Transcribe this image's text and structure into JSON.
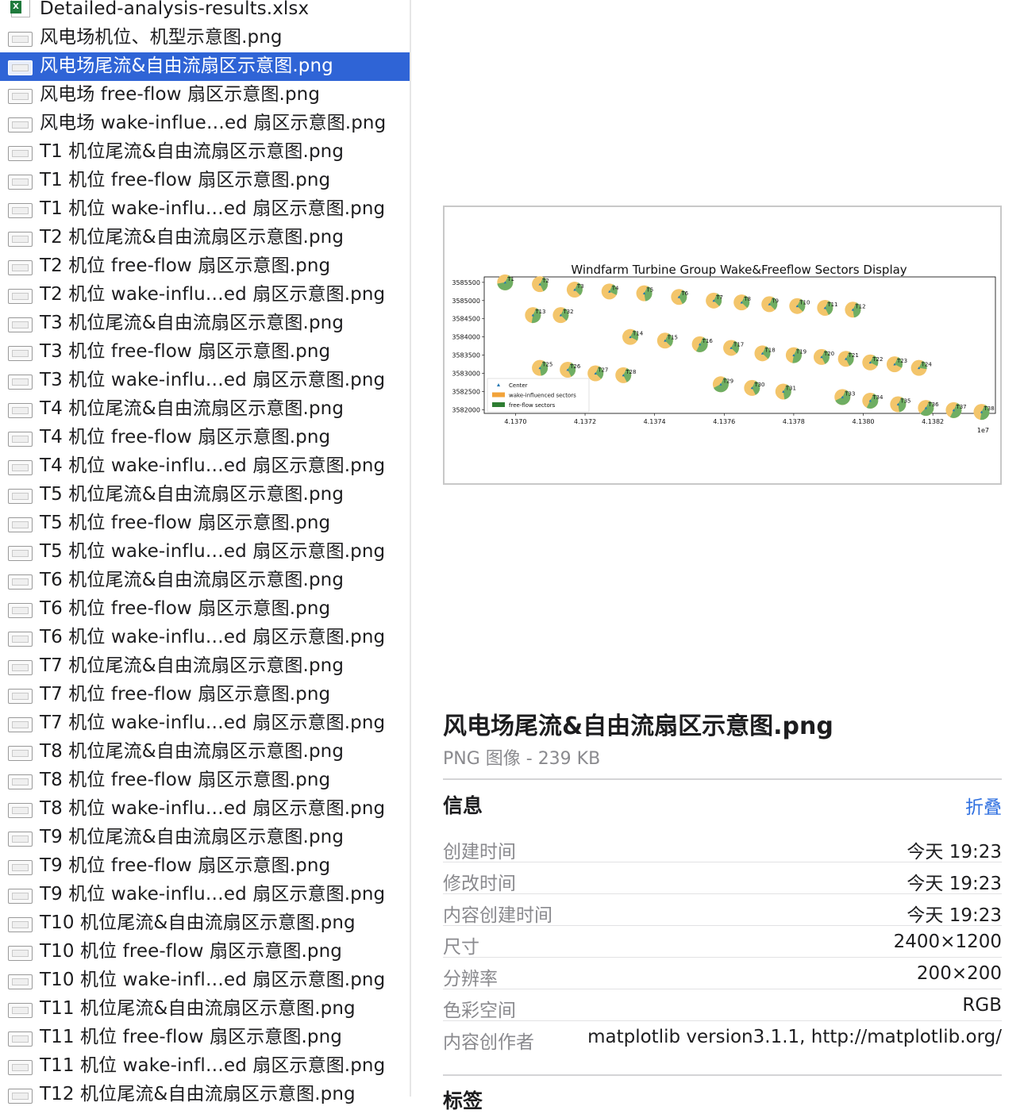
{
  "file_list": {
    "items": [
      {
        "name": "Detailed-analysis-results.xlsx",
        "icon": "excel-file-icon",
        "selected": false
      },
      {
        "name": "风电场机位、机型示意图.png",
        "icon": "image-file-icon",
        "selected": false
      },
      {
        "name": "风电场尾流&自由流扇区示意图.png",
        "icon": "image-file-icon",
        "selected": true
      },
      {
        "name": "风电场 free-flow 扇区示意图.png",
        "icon": "image-file-icon",
        "selected": false
      },
      {
        "name": "风电场 wake-influe…ed 扇区示意图.png",
        "icon": "image-file-icon",
        "selected": false
      },
      {
        "name": "T1 机位尾流&自由流扇区示意图.png",
        "icon": "image-file-icon",
        "selected": false
      },
      {
        "name": "T1 机位 free-flow 扇区示意图.png",
        "icon": "image-file-icon",
        "selected": false
      },
      {
        "name": "T1 机位 wake-influ…ed 扇区示意图.png",
        "icon": "image-file-icon",
        "selected": false
      },
      {
        "name": "T2 机位尾流&自由流扇区示意图.png",
        "icon": "image-file-icon",
        "selected": false
      },
      {
        "name": "T2 机位 free-flow 扇区示意图.png",
        "icon": "image-file-icon",
        "selected": false
      },
      {
        "name": "T2 机位 wake-influ…ed 扇区示意图.png",
        "icon": "image-file-icon",
        "selected": false
      },
      {
        "name": "T3 机位尾流&自由流扇区示意图.png",
        "icon": "image-file-icon",
        "selected": false
      },
      {
        "name": "T3 机位 free-flow 扇区示意图.png",
        "icon": "image-file-icon",
        "selected": false
      },
      {
        "name": "T3 机位 wake-influ…ed 扇区示意图.png",
        "icon": "image-file-icon",
        "selected": false
      },
      {
        "name": "T4 机位尾流&自由流扇区示意图.png",
        "icon": "image-file-icon",
        "selected": false
      },
      {
        "name": "T4 机位 free-flow 扇区示意图.png",
        "icon": "image-file-icon",
        "selected": false
      },
      {
        "name": "T4 机位 wake-influ…ed 扇区示意图.png",
        "icon": "image-file-icon",
        "selected": false
      },
      {
        "name": "T5 机位尾流&自由流扇区示意图.png",
        "icon": "image-file-icon",
        "selected": false
      },
      {
        "name": "T5 机位 free-flow 扇区示意图.png",
        "icon": "image-file-icon",
        "selected": false
      },
      {
        "name": "T5 机位 wake-influ…ed 扇区示意图.png",
        "icon": "image-file-icon",
        "selected": false
      },
      {
        "name": "T6 机位尾流&自由流扇区示意图.png",
        "icon": "image-file-icon",
        "selected": false
      },
      {
        "name": "T6 机位 free-flow 扇区示意图.png",
        "icon": "image-file-icon",
        "selected": false
      },
      {
        "name": "T6 机位 wake-influ…ed 扇区示意图.png",
        "icon": "image-file-icon",
        "selected": false
      },
      {
        "name": "T7 机位尾流&自由流扇区示意图.png",
        "icon": "image-file-icon",
        "selected": false
      },
      {
        "name": "T7 机位 free-flow 扇区示意图.png",
        "icon": "image-file-icon",
        "selected": false
      },
      {
        "name": "T7 机位 wake-influ…ed 扇区示意图.png",
        "icon": "image-file-icon",
        "selected": false
      },
      {
        "name": "T8 机位尾流&自由流扇区示意图.png",
        "icon": "image-file-icon",
        "selected": false
      },
      {
        "name": "T8 机位 free-flow 扇区示意图.png",
        "icon": "image-file-icon",
        "selected": false
      },
      {
        "name": "T8 机位 wake-influ…ed 扇区示意图.png",
        "icon": "image-file-icon",
        "selected": false
      },
      {
        "name": "T9 机位尾流&自由流扇区示意图.png",
        "icon": "image-file-icon",
        "selected": false
      },
      {
        "name": "T9 机位 free-flow 扇区示意图.png",
        "icon": "image-file-icon",
        "selected": false
      },
      {
        "name": "T9 机位 wake-influ…ed 扇区示意图.png",
        "icon": "image-file-icon",
        "selected": false
      },
      {
        "name": "T10 机位尾流&自由流扇区示意图.png",
        "icon": "image-file-icon",
        "selected": false
      },
      {
        "name": "T10 机位 free-flow 扇区示意图.png",
        "icon": "image-file-icon",
        "selected": false
      },
      {
        "name": "T10 机位 wake-infl…ed 扇区示意图.png",
        "icon": "image-file-icon",
        "selected": false
      },
      {
        "name": "T11 机位尾流&自由流扇区示意图.png",
        "icon": "image-file-icon",
        "selected": false
      },
      {
        "name": "T11 机位 free-flow 扇区示意图.png",
        "icon": "image-file-icon",
        "selected": false
      },
      {
        "name": "T11 机位 wake-infl…ed 扇区示意图.png",
        "icon": "image-file-icon",
        "selected": false
      },
      {
        "name": "T12 机位尾流&自由流扇区示意图.png",
        "icon": "image-file-icon",
        "selected": false
      }
    ]
  },
  "preview": {
    "chart_data": {
      "type": "scatter",
      "title": "Windfarm Turbine Group Wake&Freeflow Sectors Display",
      "x_offset_label": "1e7",
      "x_ticks": [
        "4.1370",
        "4.1372",
        "4.1374",
        "4.1376",
        "4.1378",
        "4.1380",
        "4.1382"
      ],
      "x_tick_values": [
        4.137,
        4.1372,
        4.1374,
        4.1376,
        4.1378,
        4.138,
        4.1382
      ],
      "y_ticks": [
        "3585500",
        "3585000",
        "3584500",
        "3584000",
        "3583500",
        "3583000",
        "3582500",
        "3582000"
      ],
      "y_tick_values": [
        3585500,
        3585000,
        3584500,
        3584000,
        3583500,
        3583000,
        3582500,
        3582000
      ],
      "xlim": [
        4.13691,
        4.13838
      ],
      "ylim": [
        3581900,
        3585650
      ],
      "legend_position": "lower left",
      "legend": [
        {
          "label": "Center",
          "marker": "triangle",
          "color": "#1f77b4"
        },
        {
          "label": "wake-influenced sectors",
          "marker": "patch",
          "color": "#f2a33a"
        },
        {
          "label": "free-flow sectors",
          "marker": "patch",
          "color": "#2e7d32"
        }
      ],
      "colors": {
        "wake": "#f3c56b",
        "free": "#6fae63"
      },
      "turbines": [
        {
          "id": "T1",
          "x": 4.13697,
          "y": 3585500,
          "free_fraction": 0.65
        },
        {
          "id": "T2",
          "x": 4.13707,
          "y": 3585450,
          "free_fraction": 0.35
        },
        {
          "id": "T3",
          "x": 4.13717,
          "y": 3585300,
          "free_fraction": 0.3
        },
        {
          "id": "T4",
          "x": 4.13727,
          "y": 3585250,
          "free_fraction": 0.25
        },
        {
          "id": "T5",
          "x": 4.13737,
          "y": 3585200,
          "free_fraction": 0.4
        },
        {
          "id": "T6",
          "x": 4.13747,
          "y": 3585100,
          "free_fraction": 0.35
        },
        {
          "id": "T7",
          "x": 4.13757,
          "y": 3585000,
          "free_fraction": 0.3
        },
        {
          "id": "T8",
          "x": 4.13765,
          "y": 3584950,
          "free_fraction": 0.3
        },
        {
          "id": "T9",
          "x": 4.13773,
          "y": 3584900,
          "free_fraction": 0.3
        },
        {
          "id": "T10",
          "x": 4.13781,
          "y": 3584850,
          "free_fraction": 0.3
        },
        {
          "id": "T11",
          "x": 4.13789,
          "y": 3584800,
          "free_fraction": 0.35
        },
        {
          "id": "T12",
          "x": 4.13797,
          "y": 3584750,
          "free_fraction": 0.4
        },
        {
          "id": "T13",
          "x": 4.13705,
          "y": 3584600,
          "free_fraction": 0.45
        },
        {
          "id": "T32",
          "x": 4.13713,
          "y": 3584600,
          "free_fraction": 0.3
        },
        {
          "id": "T14",
          "x": 4.13733,
          "y": 3584000,
          "free_fraction": 0.25
        },
        {
          "id": "T15",
          "x": 4.13743,
          "y": 3583900,
          "free_fraction": 0.3
        },
        {
          "id": "T16",
          "x": 4.13753,
          "y": 3583800,
          "free_fraction": 0.5
        },
        {
          "id": "T17",
          "x": 4.13762,
          "y": 3583700,
          "free_fraction": 0.3
        },
        {
          "id": "T18",
          "x": 4.13771,
          "y": 3583550,
          "free_fraction": 0.3
        },
        {
          "id": "T19",
          "x": 4.1378,
          "y": 3583500,
          "free_fraction": 0.45
        },
        {
          "id": "T20",
          "x": 4.13788,
          "y": 3583450,
          "free_fraction": 0.35
        },
        {
          "id": "T21",
          "x": 4.13795,
          "y": 3583400,
          "free_fraction": 0.35
        },
        {
          "id": "T22",
          "x": 4.13802,
          "y": 3583300,
          "free_fraction": 0.25
        },
        {
          "id": "T23",
          "x": 4.13809,
          "y": 3583250,
          "free_fraction": 0.25
        },
        {
          "id": "T24",
          "x": 4.13816,
          "y": 3583150,
          "free_fraction": 0.2
        },
        {
          "id": "T25",
          "x": 4.13707,
          "y": 3583150,
          "free_fraction": 0.4
        },
        {
          "id": "T26",
          "x": 4.13715,
          "y": 3583100,
          "free_fraction": 0.35
        },
        {
          "id": "T27",
          "x": 4.13723,
          "y": 3583000,
          "free_fraction": 0.3
        },
        {
          "id": "T28",
          "x": 4.13731,
          "y": 3582950,
          "free_fraction": 0.35
        },
        {
          "id": "T29",
          "x": 4.13759,
          "y": 3582700,
          "free_fraction": 0.6
        },
        {
          "id": "T30",
          "x": 4.13768,
          "y": 3582600,
          "free_fraction": 0.35
        },
        {
          "id": "T31",
          "x": 4.13777,
          "y": 3582500,
          "free_fraction": 0.4
        },
        {
          "id": "T33",
          "x": 4.13794,
          "y": 3582350,
          "free_fraction": 0.6
        },
        {
          "id": "T34",
          "x": 4.13802,
          "y": 3582250,
          "free_fraction": 0.5
        },
        {
          "id": "T35",
          "x": 4.1381,
          "y": 3582150,
          "free_fraction": 0.4
        },
        {
          "id": "T36",
          "x": 4.13818,
          "y": 3582050,
          "free_fraction": 0.55
        },
        {
          "id": "T37",
          "x": 4.13826,
          "y": 3581990,
          "free_fraction": 0.5
        },
        {
          "id": "T38",
          "x": 4.13834,
          "y": 3581940,
          "free_fraction": 0.45
        }
      ]
    }
  },
  "info_panel": {
    "title": "风电场尾流&自由流扇区示意图.png",
    "subtitle": "PNG 图像 - 239 KB",
    "info_heading": "信息",
    "collapse_label": "折叠",
    "rows": [
      {
        "label": "创建时间",
        "value": "今天 19:23"
      },
      {
        "label": "修改时间",
        "value": "今天 19:23"
      },
      {
        "label": "内容创建时间",
        "value": "今天 19:23"
      },
      {
        "label": "尺寸",
        "value": "2400×1200"
      },
      {
        "label": "分辨率",
        "value": "200×200"
      },
      {
        "label": "色彩空间",
        "value": "RGB"
      },
      {
        "label": "内容创作者",
        "value": "matplotlib version3.1.1, http://matplotlib.org/"
      }
    ],
    "tags_heading": "标签"
  }
}
